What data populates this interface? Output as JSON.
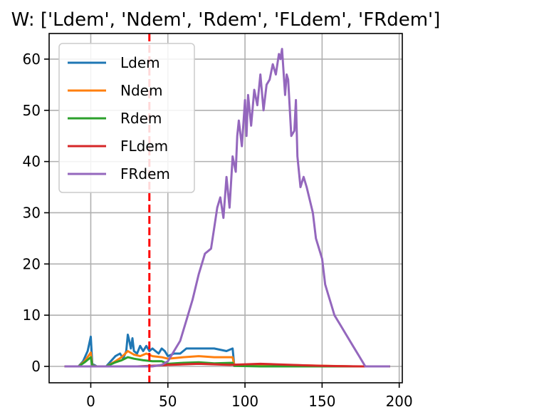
{
  "chart_data": {
    "type": "line",
    "title": "W: ['Ldem', 'Ndem', 'Rdem', 'FLdem', 'FRdem']",
    "xlim": [
      -27,
      202
    ],
    "ylim": [
      -3.2,
      65
    ],
    "xticks": [
      0,
      50,
      100,
      150,
      200
    ],
    "yticks": [
      0,
      10,
      20,
      30,
      40,
      50,
      60
    ],
    "grid": true,
    "legend": "top-left",
    "vline": {
      "x": 38,
      "color": "#ff0000",
      "style": "dashed"
    },
    "series": [
      {
        "name": "Ldem",
        "color": "#1f77b4",
        "points": [
          [
            -17,
            0
          ],
          [
            -8,
            0
          ],
          [
            -5,
            1
          ],
          [
            -2,
            3
          ],
          [
            0,
            5.8
          ],
          [
            1,
            0.5
          ],
          [
            4,
            0
          ],
          [
            10,
            0
          ],
          [
            13,
            1
          ],
          [
            16,
            2
          ],
          [
            19,
            2.5
          ],
          [
            21,
            1.5
          ],
          [
            23,
            3
          ],
          [
            24,
            6.2
          ],
          [
            25,
            5
          ],
          [
            26,
            3.5
          ],
          [
            27,
            5.5
          ],
          [
            28,
            3
          ],
          [
            30,
            2.5
          ],
          [
            32,
            4
          ],
          [
            34,
            3
          ],
          [
            36,
            4
          ],
          [
            38,
            3
          ],
          [
            40,
            3.5
          ],
          [
            42,
            3
          ],
          [
            44,
            2.5
          ],
          [
            46,
            3.5
          ],
          [
            48,
            3
          ],
          [
            50,
            2
          ],
          [
            54,
            2.5
          ],
          [
            58,
            2.5
          ],
          [
            62,
            3.5
          ],
          [
            70,
            3.5
          ],
          [
            80,
            3.5
          ],
          [
            88,
            3
          ],
          [
            92,
            3.5
          ],
          [
            93,
            0.3
          ],
          [
            110,
            0.3
          ],
          [
            140,
            0.1
          ],
          [
            170,
            0
          ],
          [
            194,
            0
          ]
        ]
      },
      {
        "name": "Ndem",
        "color": "#ff7f0e",
        "points": [
          [
            -17,
            0
          ],
          [
            -8,
            0
          ],
          [
            -4,
            1
          ],
          [
            0,
            2.7
          ],
          [
            1,
            0.2
          ],
          [
            4,
            0
          ],
          [
            10,
            0
          ],
          [
            16,
            1
          ],
          [
            20,
            1.8
          ],
          [
            24,
            3
          ],
          [
            28,
            2.3
          ],
          [
            32,
            2
          ],
          [
            36,
            2.5
          ],
          [
            40,
            2
          ],
          [
            46,
            1.8
          ],
          [
            50,
            1.5
          ],
          [
            60,
            1.8
          ],
          [
            70,
            2
          ],
          [
            80,
            1.8
          ],
          [
            92,
            1.8
          ],
          [
            93,
            0.3
          ],
          [
            110,
            0.4
          ],
          [
            140,
            0.2
          ],
          [
            170,
            0
          ],
          [
            194,
            0
          ]
        ]
      },
      {
        "name": "Rdem",
        "color": "#2ca02c",
        "points": [
          [
            -17,
            0
          ],
          [
            -8,
            0
          ],
          [
            -4,
            0.8
          ],
          [
            0,
            1.8
          ],
          [
            1,
            0.1
          ],
          [
            4,
            0
          ],
          [
            10,
            0
          ],
          [
            16,
            0.8
          ],
          [
            20,
            1.2
          ],
          [
            24,
            1.8
          ],
          [
            28,
            1.5
          ],
          [
            34,
            1.2
          ],
          [
            40,
            1
          ],
          [
            46,
            1
          ],
          [
            50,
            0.5
          ],
          [
            60,
            0.7
          ],
          [
            70,
            0.8
          ],
          [
            80,
            0.6
          ],
          [
            92,
            0.7
          ],
          [
            93,
            0.1
          ],
          [
            110,
            0
          ],
          [
            194,
            0
          ]
        ]
      },
      {
        "name": "FLdem",
        "color": "#d62728",
        "points": [
          [
            -17,
            0
          ],
          [
            10,
            0
          ],
          [
            30,
            0
          ],
          [
            38,
            0.1
          ],
          [
            45,
            0.2
          ],
          [
            50,
            0.3
          ],
          [
            60,
            0.4
          ],
          [
            70,
            0.5
          ],
          [
            80,
            0.4
          ],
          [
            90,
            0.3
          ],
          [
            100,
            0.4
          ],
          [
            110,
            0.5
          ],
          [
            120,
            0.4
          ],
          [
            130,
            0.3
          ],
          [
            140,
            0.2
          ],
          [
            150,
            0.1
          ],
          [
            160,
            0.05
          ],
          [
            170,
            0.02
          ],
          [
            180,
            0
          ],
          [
            194,
            0
          ]
        ]
      },
      {
        "name": "FRdem",
        "color": "#9467bd",
        "points": [
          [
            -17,
            0
          ],
          [
            40,
            0
          ],
          [
            46,
            0.3
          ],
          [
            50,
            1
          ],
          [
            54,
            3
          ],
          [
            58,
            5
          ],
          [
            62,
            9
          ],
          [
            66,
            13
          ],
          [
            70,
            18
          ],
          [
            74,
            22
          ],
          [
            78,
            23
          ],
          [
            80,
            27
          ],
          [
            82,
            31
          ],
          [
            84,
            33
          ],
          [
            86,
            29
          ],
          [
            88,
            37
          ],
          [
            90,
            31
          ],
          [
            92,
            41
          ],
          [
            94,
            38
          ],
          [
            95,
            45
          ],
          [
            96,
            48
          ],
          [
            98,
            43
          ],
          [
            100,
            52
          ],
          [
            101,
            45
          ],
          [
            102,
            53
          ],
          [
            104,
            47
          ],
          [
            106,
            54
          ],
          [
            108,
            51
          ],
          [
            110,
            57
          ],
          [
            112,
            50
          ],
          [
            114,
            55
          ],
          [
            116,
            56
          ],
          [
            118,
            59
          ],
          [
            120,
            57
          ],
          [
            122,
            61
          ],
          [
            123,
            60
          ],
          [
            124,
            62
          ],
          [
            126,
            53
          ],
          [
            127,
            57
          ],
          [
            128,
            56
          ],
          [
            130,
            45
          ],
          [
            132,
            46
          ],
          [
            133,
            52
          ],
          [
            134,
            41
          ],
          [
            136,
            35
          ],
          [
            138,
            37
          ],
          [
            140,
            35
          ],
          [
            144,
            30
          ],
          [
            146,
            25
          ],
          [
            150,
            21
          ],
          [
            152,
            16
          ],
          [
            154,
            14
          ],
          [
            156,
            12
          ],
          [
            158,
            10
          ],
          [
            162,
            8
          ],
          [
            166,
            6
          ],
          [
            170,
            4
          ],
          [
            174,
            2
          ],
          [
            176,
            1
          ],
          [
            178,
            0
          ],
          [
            194,
            0
          ]
        ]
      }
    ]
  }
}
